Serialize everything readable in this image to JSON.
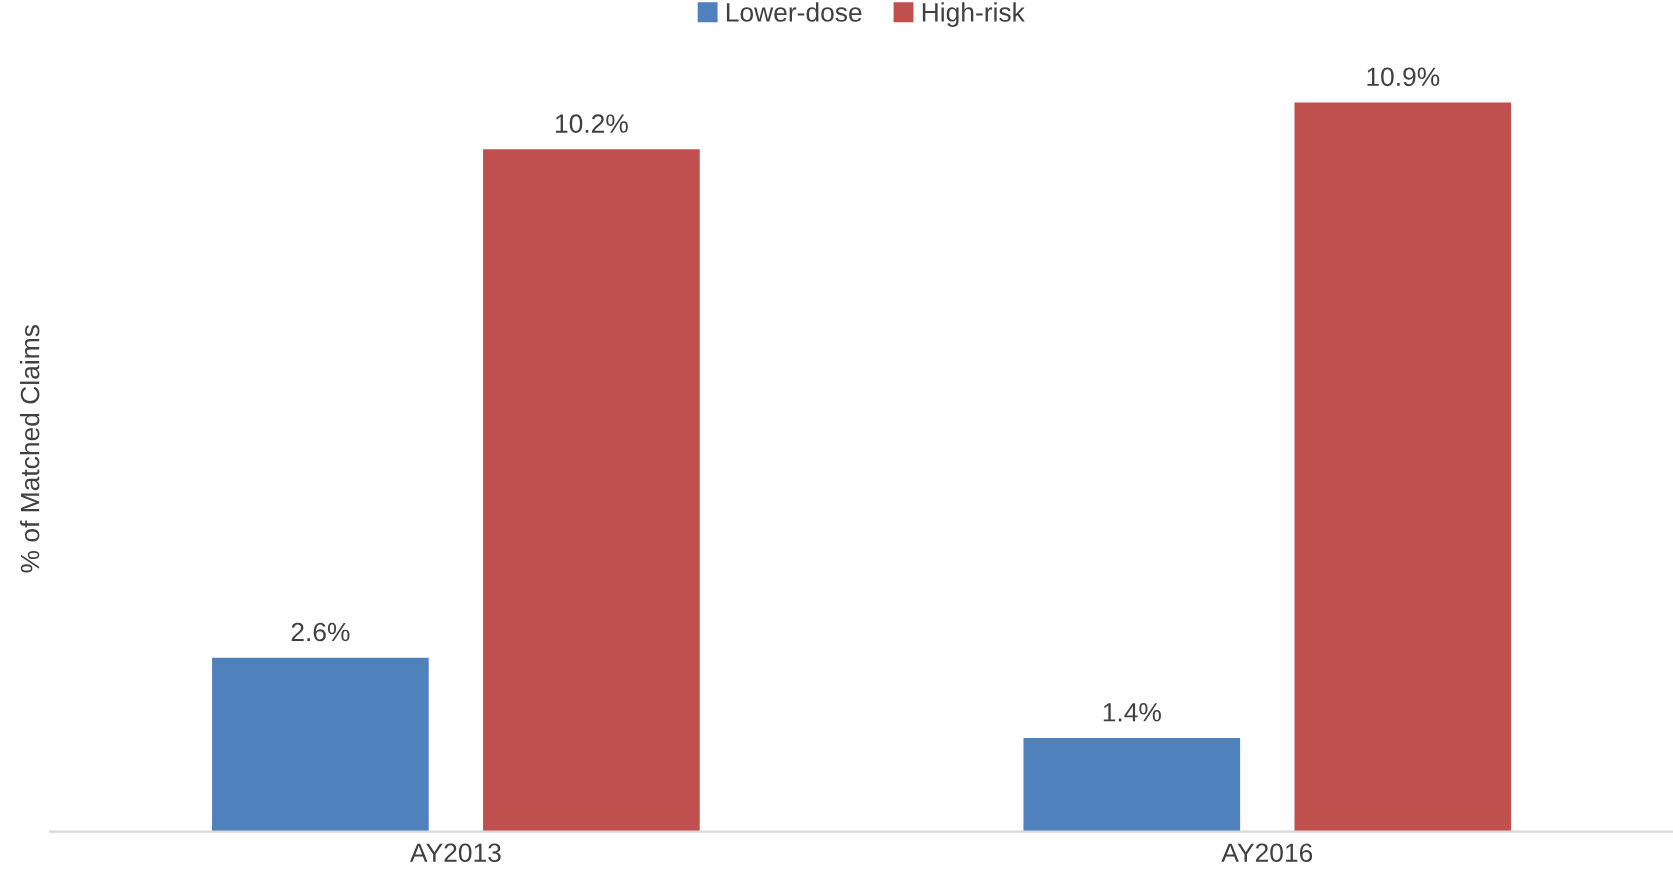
{
  "chart_data": {
    "type": "bar",
    "ylabel": "% of Matched Claims",
    "categories": [
      "AY2013",
      "AY2016"
    ],
    "series": [
      {
        "name": "Lower-dose",
        "color": "#4f81bd",
        "values": [
          2.6,
          1.4
        ],
        "value_labels": [
          "2.6%",
          "1.4%"
        ]
      },
      {
        "name": "High-risk",
        "color": "#c0504d",
        "values": [
          10.2,
          10.9
        ],
        "value_labels": [
          "10.2%",
          "10.9%"
        ]
      }
    ],
    "tick_labels": "x",
    "legend": "top",
    "grid": false
  }
}
